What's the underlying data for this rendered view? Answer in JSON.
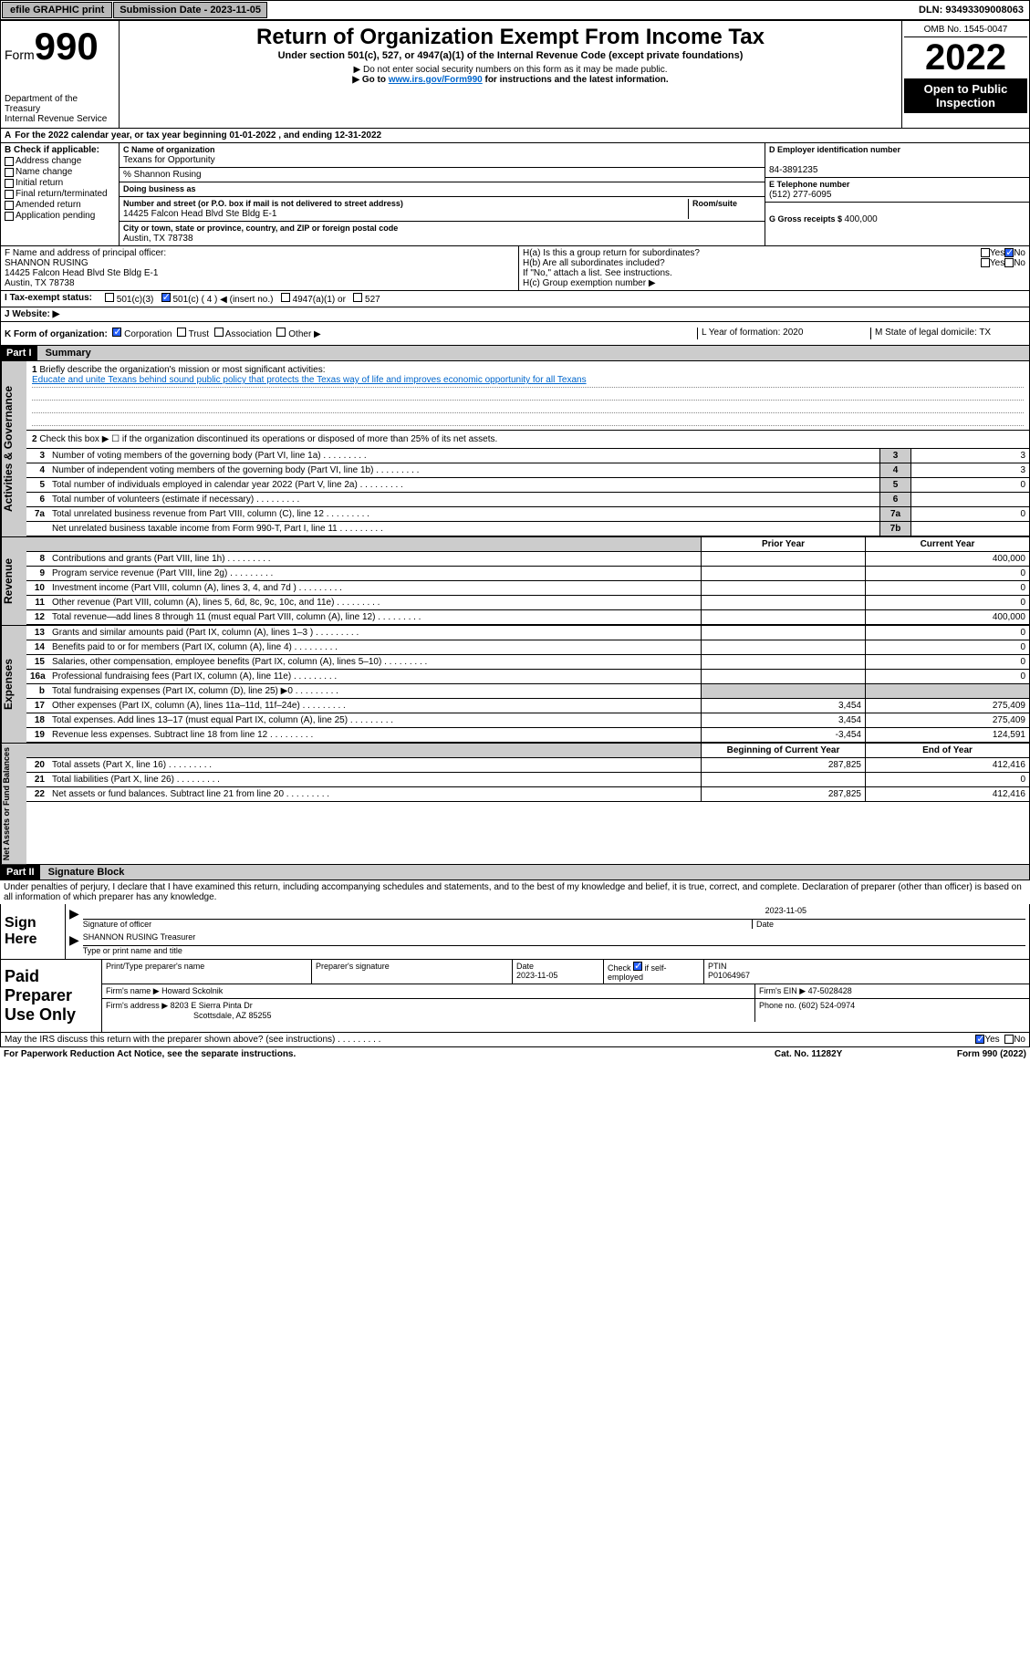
{
  "topbar": {
    "efile_btn": "efile GRAPHIC print",
    "sub_label": "Submission Date - 2023-11-05",
    "dln": "DLN: 93493309008063"
  },
  "header": {
    "form_label": "Form",
    "form_no": "990",
    "dept": "Department of the Treasury",
    "irs": "Internal Revenue Service",
    "title": "Return of Organization Exempt From Income Tax",
    "sub1": "Under section 501(c), 527, or 4947(a)(1) of the Internal Revenue Code (except private foundations)",
    "sub2": "▶ Do not enter social security numbers on this form as it may be made public.",
    "sub3_pre": "▶ Go to ",
    "sub3_link": "www.irs.gov/Form990",
    "sub3_post": " for instructions and the latest information.",
    "omb": "OMB No. 1545-0047",
    "year": "2022",
    "open": "Open to Public Inspection"
  },
  "line_a": "For the 2022 calendar year, or tax year beginning 01-01-2022   , and ending 12-31-2022",
  "col_b": {
    "title": "B Check if applicable:",
    "items": [
      "Address change",
      "Name change",
      "Initial return",
      "Final return/terminated",
      "Amended return",
      "Application pending"
    ]
  },
  "col_c": {
    "c_lbl": "C Name of organization",
    "org": "Texans for Opportunity",
    "care_of": "% Shannon Rusing",
    "dba_lbl": "Doing business as",
    "street_lbl": "Number and street (or P.O. box if mail is not delivered to street address)",
    "room_lbl": "Room/suite",
    "street": "14425 Falcon Head Blvd Ste Bldg E-1",
    "city_lbl": "City or town, state or province, country, and ZIP or foreign postal code",
    "city": "Austin, TX  78738"
  },
  "col_d": {
    "d_lbl": "D Employer identification number",
    "ein": "84-3891235",
    "e_lbl": "E Telephone number",
    "phone": "(512) 277-6095",
    "g_lbl": "G Gross receipts $ ",
    "g_val": "400,000"
  },
  "row_f": {
    "f_lbl": "F Name and address of principal officer:",
    "name": "SHANNON RUSING",
    "addr1": "14425 Falcon Head Blvd Ste Bldg E-1",
    "addr2": "Austin, TX  78738"
  },
  "row_h": {
    "ha": "H(a)  Is this a group return for subordinates?",
    "hb": "H(b)  Are all subordinates included?",
    "hb_note": "If \"No,\" attach a list. See instructions.",
    "hc": "H(c)  Group exemption number ▶",
    "yes": "Yes",
    "no": "No"
  },
  "row_i": {
    "lbl": "Tax-exempt status:",
    "opts": [
      "501(c)(3)",
      "501(c) ( 4 ) ◀ (insert no.)",
      "4947(a)(1) or",
      "527"
    ]
  },
  "row_j": "Website: ▶",
  "row_k": {
    "lbl": "K Form of organization:",
    "opts": [
      "Corporation",
      "Trust",
      "Association",
      "Other ▶"
    ],
    "l": "L Year of formation: 2020",
    "m": "M State of legal domicile: TX"
  },
  "part1": {
    "hdr": "Part I",
    "title": "Summary",
    "q1": "Briefly describe the organization's mission or most significant activities:",
    "mission": "Educate and unite Texans behind sound public policy that protects the Texas way of life and improves economic opportunity for all Texans",
    "q2": "Check this box ▶ ☐  if the organization discontinued its operations or disposed of more than 25% of its net assets.",
    "lines": [
      {
        "n": "3",
        "d": "Number of voting members of the governing body (Part VI, line 1a)",
        "box": "3",
        "v": "3"
      },
      {
        "n": "4",
        "d": "Number of independent voting members of the governing body (Part VI, line 1b)",
        "box": "4",
        "v": "3"
      },
      {
        "n": "5",
        "d": "Total number of individuals employed in calendar year 2022 (Part V, line 2a)",
        "box": "5",
        "v": "0"
      },
      {
        "n": "6",
        "d": "Total number of volunteers (estimate if necessary)",
        "box": "6",
        "v": ""
      },
      {
        "n": "7a",
        "d": "Total unrelated business revenue from Part VIII, column (C), line 12",
        "box": "7a",
        "v": "0"
      },
      {
        "n": "",
        "d": "Net unrelated business taxable income from Form 990-T, Part I, line 11",
        "box": "7b",
        "v": ""
      }
    ],
    "col_hdr1": "Prior Year",
    "col_hdr2": "Current Year",
    "rev": [
      {
        "n": "8",
        "d": "Contributions and grants (Part VIII, line 1h)",
        "c1": "",
        "c2": "400,000"
      },
      {
        "n": "9",
        "d": "Program service revenue (Part VIII, line 2g)",
        "c1": "",
        "c2": "0"
      },
      {
        "n": "10",
        "d": "Investment income (Part VIII, column (A), lines 3, 4, and 7d )",
        "c1": "",
        "c2": "0"
      },
      {
        "n": "11",
        "d": "Other revenue (Part VIII, column (A), lines 5, 6d, 8c, 9c, 10c, and 11e)",
        "c1": "",
        "c2": "0"
      },
      {
        "n": "12",
        "d": "Total revenue—add lines 8 through 11 (must equal Part VIII, column (A), line 12)",
        "c1": "",
        "c2": "400,000"
      }
    ],
    "exp": [
      {
        "n": "13",
        "d": "Grants and similar amounts paid (Part IX, column (A), lines 1–3 )",
        "c1": "",
        "c2": "0"
      },
      {
        "n": "14",
        "d": "Benefits paid to or for members (Part IX, column (A), line 4)",
        "c1": "",
        "c2": "0"
      },
      {
        "n": "15",
        "d": "Salaries, other compensation, employee benefits (Part IX, column (A), lines 5–10)",
        "c1": "",
        "c2": "0"
      },
      {
        "n": "16a",
        "d": "Professional fundraising fees (Part IX, column (A), line 11e)",
        "c1": "",
        "c2": "0"
      },
      {
        "n": "b",
        "d": "Total fundraising expenses (Part IX, column (D), line 25) ▶0",
        "c1": "gray",
        "c2": "gray"
      },
      {
        "n": "17",
        "d": "Other expenses (Part IX, column (A), lines 11a–11d, 11f–24e)",
        "c1": "3,454",
        "c2": "275,409"
      },
      {
        "n": "18",
        "d": "Total expenses. Add lines 13–17 (must equal Part IX, column (A), line 25)",
        "c1": "3,454",
        "c2": "275,409"
      },
      {
        "n": "19",
        "d": "Revenue less expenses. Subtract line 18 from line 12",
        "c1": "-3,454",
        "c2": "124,591"
      }
    ],
    "bal_hdr1": "Beginning of Current Year",
    "bal_hdr2": "End of Year",
    "bal": [
      {
        "n": "20",
        "d": "Total assets (Part X, line 16)",
        "c1": "287,825",
        "c2": "412,416"
      },
      {
        "n": "21",
        "d": "Total liabilities (Part X, line 26)",
        "c1": "",
        "c2": "0"
      },
      {
        "n": "22",
        "d": "Net assets or fund balances. Subtract line 21 from line 20",
        "c1": "287,825",
        "c2": "412,416"
      }
    ],
    "vtabs": [
      "Activities & Governance",
      "Revenue",
      "Expenses",
      "Net Assets or Fund Balances"
    ]
  },
  "part2": {
    "hdr": "Part II",
    "title": "Signature Block",
    "para": "Under penalties of perjury, I declare that I have examined this return, including accompanying schedules and statements, and to the best of my knowledge and belief, it is true, correct, and complete. Declaration of preparer (other than officer) is based on all information of which preparer has any knowledge.",
    "sign_here": "Sign Here",
    "sig_of": "Signature of officer",
    "date_lbl": "Date",
    "date": "2023-11-05",
    "name_title": "SHANNON RUSING Treasurer",
    "type_name": "Type or print name and title",
    "paid": "Paid Preparer Use Only",
    "prep_name_lbl": "Print/Type preparer's name",
    "prep_sig_lbl": "Preparer's signature",
    "prep_date_lbl": "Date",
    "prep_date": "2023-11-05",
    "check_lbl": "Check",
    "self_emp": "if self-employed",
    "ptin_lbl": "PTIN",
    "ptin": "P01064967",
    "firm_name_lbl": "Firm's name    ▶",
    "firm_name": "Howard Sckolnik",
    "firm_ein_lbl": "Firm's EIN ▶",
    "firm_ein": "47-5028428",
    "firm_addr_lbl": "Firm's address ▶",
    "firm_addr1": "8203 E Sierra Pinta Dr",
    "firm_addr2": "Scottsdale, AZ  85255",
    "phone_lbl": "Phone no. ",
    "phone": "(602) 524-0974"
  },
  "footer": {
    "discuss": "May the IRS discuss this return with the preparer shown above? (see instructions)",
    "paperwork": "For Paperwork Reduction Act Notice, see the separate instructions.",
    "cat": "Cat. No. 11282Y",
    "form": "Form 990 (2022)"
  }
}
